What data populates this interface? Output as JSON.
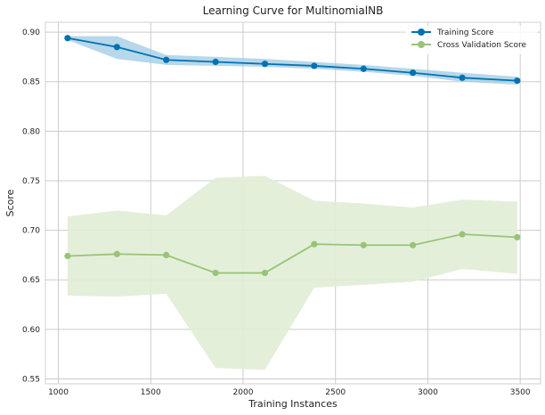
{
  "chart_data": {
    "type": "line",
    "title": "Learning Curve for MultinomialNB",
    "xlabel": "Training Instances",
    "ylabel": "Score",
    "xlim": [
      930,
      3610
    ],
    "ylim": [
      0.545,
      0.91
    ],
    "xticks": [
      1000,
      1500,
      2000,
      2500,
      3000,
      3500
    ],
    "yticks": [
      0.55,
      0.6,
      0.65,
      0.7,
      0.75,
      0.8,
      0.85,
      0.9
    ],
    "x": [
      1050,
      1317,
      1584,
      1851,
      2118,
      2385,
      2652,
      2919,
      3186,
      3484
    ],
    "legend_position": "top-right",
    "grid": true,
    "series": [
      {
        "name": "Training Score",
        "color": "#0072b2",
        "band_color": "#9fc9e3",
        "values": [
          0.894,
          0.885,
          0.872,
          0.87,
          0.868,
          0.866,
          0.863,
          0.859,
          0.854,
          0.851
        ],
        "lower": [
          0.892,
          0.873,
          0.867,
          0.866,
          0.865,
          0.863,
          0.86,
          0.856,
          0.85,
          0.847
        ],
        "upper": [
          0.896,
          0.896,
          0.877,
          0.875,
          0.873,
          0.87,
          0.867,
          0.863,
          0.859,
          0.855
        ]
      },
      {
        "name": "Cross Validation Score",
        "color": "#99c476",
        "band_color": "#e1edd6",
        "values": [
          0.674,
          0.676,
          0.675,
          0.657,
          0.657,
          0.686,
          0.685,
          0.685,
          0.696,
          0.693
        ],
        "lower": [
          0.634,
          0.633,
          0.636,
          0.561,
          0.559,
          0.642,
          0.645,
          0.648,
          0.661,
          0.656
        ],
        "upper": [
          0.714,
          0.72,
          0.715,
          0.753,
          0.755,
          0.73,
          0.727,
          0.723,
          0.731,
          0.729
        ]
      }
    ]
  }
}
